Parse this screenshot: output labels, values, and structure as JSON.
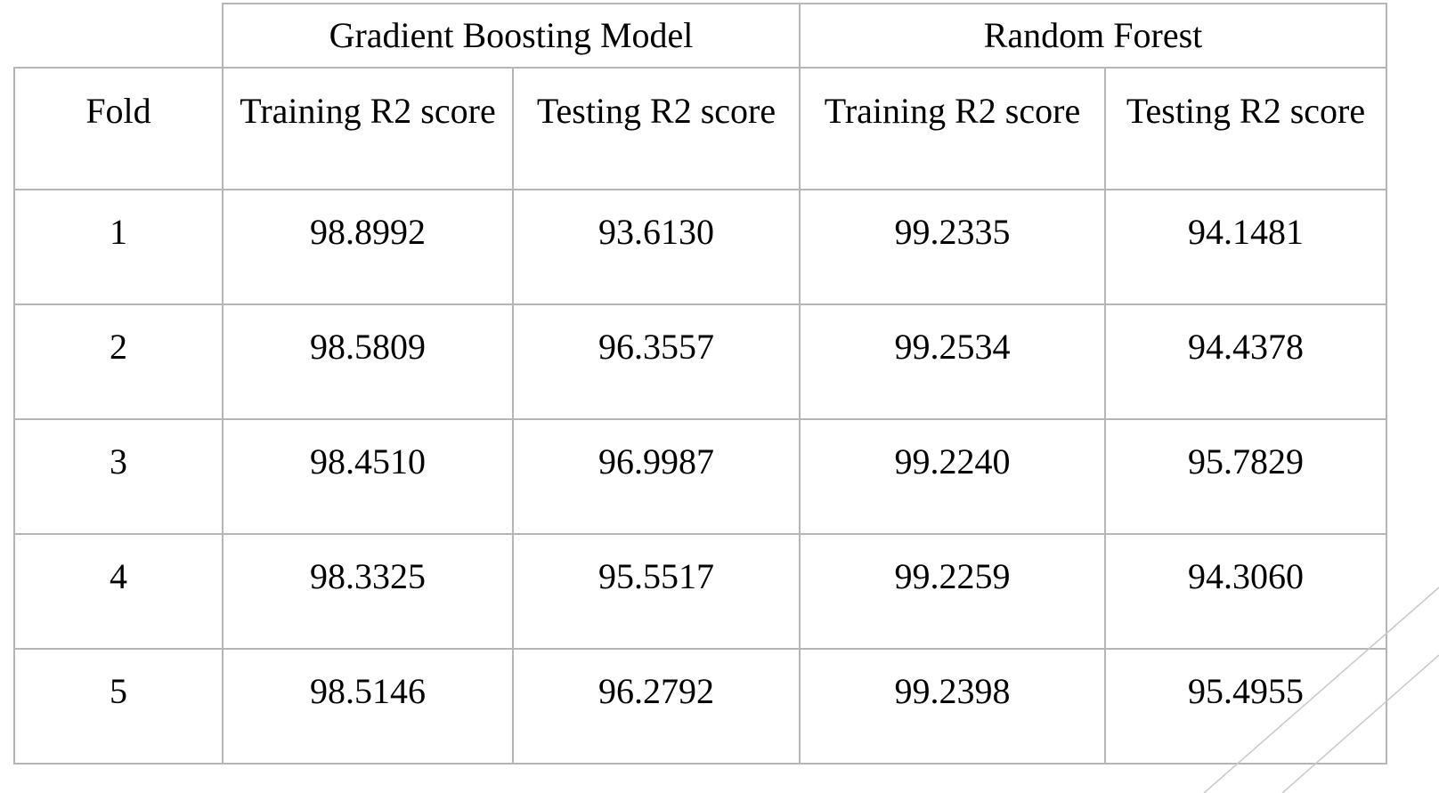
{
  "table": {
    "group_headers": [
      "Gradient Boosting Model",
      "Random Forest"
    ],
    "column_headers": [
      "Fold",
      "Training R2 score",
      "Testing R2 score",
      "Training R2 score",
      "Testing R2 score"
    ],
    "rows": [
      [
        "1",
        "98.8992",
        "93.6130",
        "99.2335",
        "94.1481"
      ],
      [
        "2",
        "98.5809",
        "96.3557",
        "99.2534",
        "94.4378"
      ],
      [
        "3",
        "98.4510",
        "96.9987",
        "99.2240",
        "95.7829"
      ],
      [
        "4",
        "98.3325",
        "95.5517",
        "99.2259",
        "94.3060"
      ],
      [
        "5",
        "98.5146",
        "96.2792",
        "99.2398",
        "95.4955"
      ]
    ]
  },
  "colors": {
    "border": "#b5b5b5",
    "text": "#000000",
    "background": "#ffffff",
    "decoration_line": "#c8c8c8"
  }
}
